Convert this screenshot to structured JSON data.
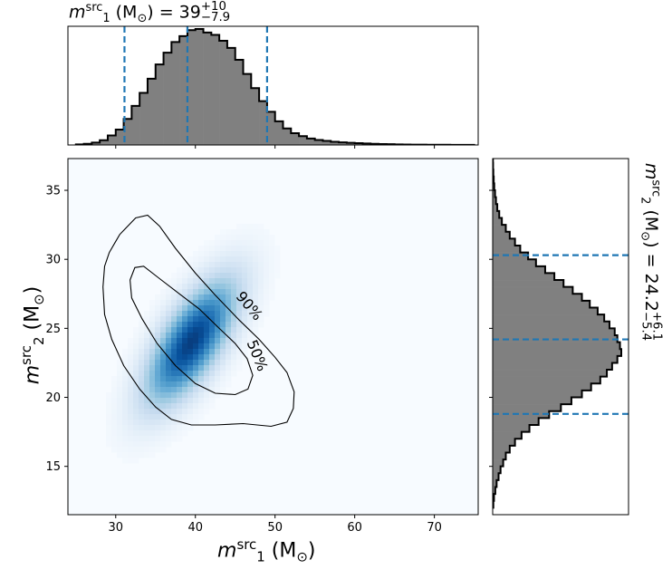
{
  "chart_data": [
    {
      "id": "joint",
      "type": "heatmap",
      "title": "",
      "xlabel_math": "m",
      "xlabel_sup": "src",
      "xlabel_sub": "1",
      "xlabel_unit": "(M",
      "xlabel_unit_sub": "⊙",
      "xlabel_close": ")",
      "ylabel_math": "m",
      "ylabel_sup": "src",
      "ylabel_sub": "2",
      "ylabel_unit": "(M",
      "ylabel_unit_sub": "⊙",
      "ylabel_close": ")",
      "xlim": [
        24,
        75.5
      ],
      "ylim": [
        11.5,
        37.3
      ],
      "xticks": [
        30,
        40,
        50,
        60,
        70
      ],
      "yticks": [
        15,
        20,
        25,
        30,
        35
      ],
      "colormap": "Blues",
      "density_peak": {
        "x": 39.5,
        "y": 24.0
      },
      "contours": [
        {
          "label": "90%",
          "points": [
            [
              29.2,
              30.5
            ],
            [
              30.5,
              31.8
            ],
            [
              32.5,
              33.0
            ],
            [
              34.0,
              33.2
            ],
            [
              35.5,
              32.4
            ],
            [
              37.5,
              30.8
            ],
            [
              40.0,
              29.0
            ],
            [
              42.5,
              27.4
            ],
            [
              45.5,
              25.6
            ],
            [
              48.0,
              24.2
            ],
            [
              50.0,
              22.9
            ],
            [
              51.5,
              21.8
            ],
            [
              52.4,
              20.4
            ],
            [
              52.3,
              19.2
            ],
            [
              51.5,
              18.2
            ],
            [
              49.5,
              17.9
            ],
            [
              46.0,
              18.1
            ],
            [
              42.5,
              18.0
            ],
            [
              39.5,
              18.0
            ],
            [
              37.0,
              18.4
            ],
            [
              35.0,
              19.3
            ],
            [
              33.0,
              20.6
            ],
            [
              31.0,
              22.3
            ],
            [
              29.5,
              24.2
            ],
            [
              28.6,
              26.0
            ],
            [
              28.4,
              28.0
            ],
            [
              28.6,
              29.5
            ]
          ]
        },
        {
          "label": "50%",
          "points": [
            [
              31.8,
              28.5
            ],
            [
              32.4,
              29.4
            ],
            [
              33.5,
              29.5
            ],
            [
              35.5,
              28.6
            ],
            [
              38.0,
              27.5
            ],
            [
              40.5,
              26.4
            ],
            [
              43.0,
              25.0
            ],
            [
              45.0,
              23.9
            ],
            [
              46.5,
              22.8
            ],
            [
              47.2,
              21.6
            ],
            [
              46.6,
              20.6
            ],
            [
              45.0,
              20.2
            ],
            [
              42.5,
              20.3
            ],
            [
              40.0,
              21.0
            ],
            [
              37.5,
              22.3
            ],
            [
              35.2,
              23.9
            ],
            [
              33.3,
              25.7
            ],
            [
              32.0,
              27.2
            ]
          ]
        }
      ]
    },
    {
      "id": "m1-marginal",
      "type": "bar",
      "title_math": "m",
      "title_sup": "src",
      "title_sub": "1",
      "title_unit": "(M",
      "title_unit_sub": "⊙",
      "title_value": ") = 39",
      "title_plus": "+10",
      "title_minus": "−7.9",
      "xlim": [
        24,
        75.5
      ],
      "bin_width": 1.0,
      "bin_start": 25,
      "values": [
        0.005,
        0.01,
        0.02,
        0.04,
        0.08,
        0.13,
        0.22,
        0.33,
        0.44,
        0.56,
        0.68,
        0.78,
        0.87,
        0.92,
        0.97,
        0.98,
        0.95,
        0.93,
        0.88,
        0.82,
        0.72,
        0.6,
        0.48,
        0.37,
        0.28,
        0.2,
        0.14,
        0.1,
        0.075,
        0.055,
        0.042,
        0.034,
        0.027,
        0.022,
        0.018,
        0.015,
        0.012,
        0.01,
        0.008,
        0.007,
        0.005,
        0.004,
        0.003,
        0.003,
        0.002,
        0.002,
        0.0015,
        0.001,
        0.001,
        0.0008
      ],
      "credible_lines": [
        31.1,
        39.0,
        49.0
      ],
      "bar_color": "#808080",
      "line_color": "#1f77b4"
    },
    {
      "id": "m2-marginal",
      "type": "bar",
      "orientation": "horizontal",
      "title_math": "m",
      "title_sup": "src",
      "title_sub": "2",
      "title_unit": "(M",
      "title_unit_sub": "⊙",
      "title_value": ") = 24.2",
      "title_plus": "+6.1",
      "title_minus": "−5.4",
      "ylim": [
        11.5,
        37.3
      ],
      "bin_width": 0.5,
      "bin_start": 12,
      "values": [
        0.005,
        0.01,
        0.02,
        0.03,
        0.045,
        0.06,
        0.08,
        0.1,
        0.13,
        0.17,
        0.22,
        0.28,
        0.35,
        0.43,
        0.52,
        0.6,
        0.68,
        0.75,
        0.82,
        0.87,
        0.91,
        0.95,
        0.98,
        0.97,
        0.95,
        0.93,
        0.89,
        0.85,
        0.8,
        0.74,
        0.68,
        0.61,
        0.54,
        0.47,
        0.4,
        0.33,
        0.27,
        0.21,
        0.17,
        0.13,
        0.1,
        0.07,
        0.05,
        0.035,
        0.025,
        0.018,
        0.012,
        0.008,
        0.005,
        0.003,
        0.002,
        0.0012
      ],
      "credible_lines": [
        18.8,
        24.2,
        30.3
      ],
      "bar_color": "#808080",
      "line_color": "#1f77b4"
    }
  ]
}
